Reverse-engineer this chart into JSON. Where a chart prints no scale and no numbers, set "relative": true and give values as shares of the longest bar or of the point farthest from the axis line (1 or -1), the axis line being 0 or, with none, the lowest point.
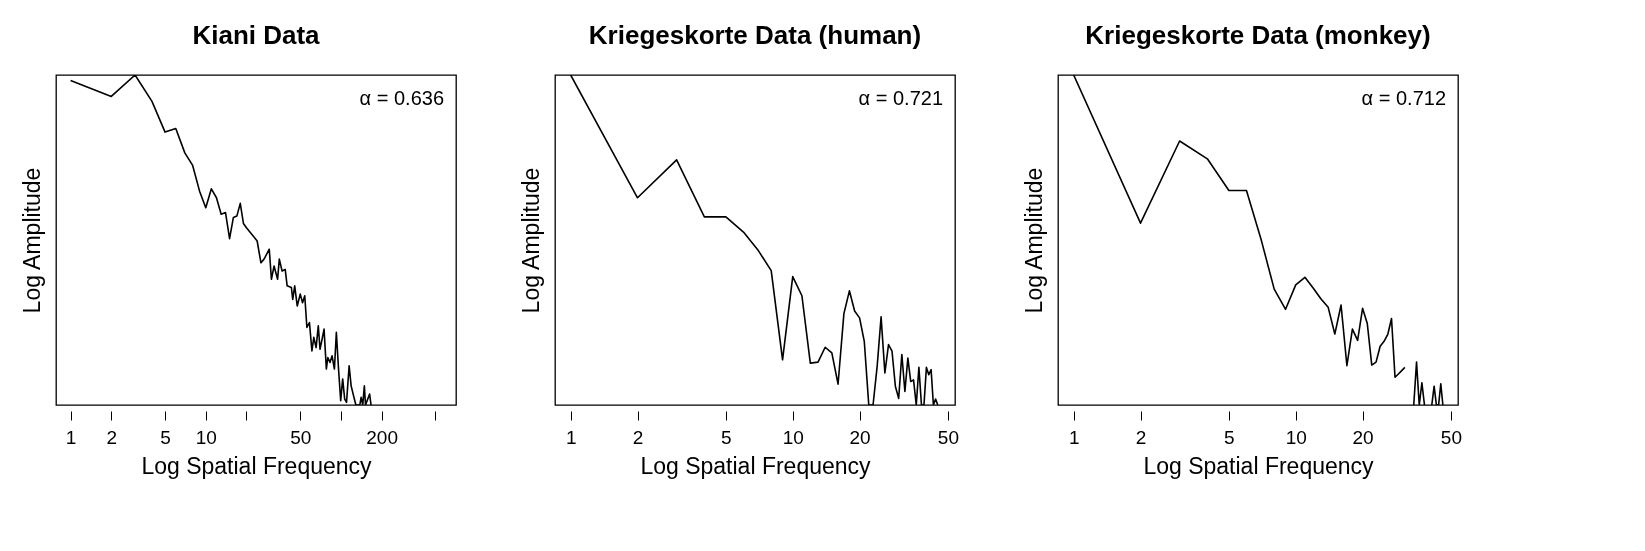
{
  "chart_data": [
    {
      "type": "line",
      "title": "Kiani Data",
      "xlabel": "Log Spatial Frequency",
      "ylabel": "Log Amplitude",
      "relative": true,
      "log": "x",
      "xlim": [
        0.78,
        710
      ],
      "xticks": [
        1,
        2,
        5,
        10,
        {
          "value": 20,
          "label": null
        },
        50,
        {
          "value": 100,
          "label": null
        },
        200,
        {
          "value": 500,
          "label": null
        }
      ],
      "annotations": [
        "α = 0.636"
      ],
      "x": [
        1,
        2,
        3,
        4,
        5,
        6,
        7,
        8,
        9,
        10,
        11,
        12,
        13,
        14,
        15,
        16,
        17,
        18,
        19,
        20,
        24,
        25.6,
        27,
        29.5,
        30.6,
        32,
        34,
        35,
        36.7,
        38.7,
        40,
        43,
        44,
        45.5,
        47.5,
        50,
        52,
        54,
        56,
        58.5,
        61,
        63,
        65.5,
        68,
        70,
        72.6,
        75,
        78,
        80,
        83,
        86,
        89.5,
        92.5,
        96,
        99.6,
        103,
        106.6,
        110,
        115,
        119,
        124,
        129,
        138,
        141,
        145,
        149,
        152,
        163,
        167
      ],
      "series": [
        {
          "color": "#000000",
          "values": [
            0.983,
            0.935,
            1.0,
            0.92,
            0.827,
            0.838,
            0.764,
            0.726,
            0.648,
            0.598,
            0.655,
            0.628,
            0.578,
            0.583,
            0.504,
            0.568,
            0.573,
            0.611,
            0.55,
            0.537,
            0.497,
            0.431,
            0.442,
            0.472,
            0.381,
            0.421,
            0.381,
            0.442,
            0.406,
            0.411,
            0.361,
            0.356,
            0.32,
            0.361,
            0.3,
            0.336,
            0.31,
            0.331,
            0.235,
            0.25,
            0.164,
            0.205,
            0.174,
            0.24,
            0.169,
            0.2,
            0.23,
            0.109,
            0.144,
            0.129,
            0.149,
            0.109,
            0.22,
            0.109,
            0.013,
            0.079,
            0.018,
            0.008,
            0.119,
            0.058,
            0.028,
            0,
            0,
            0.023,
            0,
            0.058,
            0,
            0.033,
            0
          ]
        }
      ]
    },
    {
      "type": "line",
      "title": "Kriegeskorte Data (human)",
      "xlabel": "Log Spatial Frequency",
      "ylabel": "Log Amplitude",
      "relative": true,
      "log": "x",
      "xlim": [
        0.85,
        53.8
      ],
      "xticks": [
        1,
        2,
        5,
        10,
        20,
        50
      ],
      "annotations": [
        "α = 0.721"
      ],
      "x": [
        1,
        2,
        3,
        4,
        5,
        6,
        7,
        8,
        9,
        10,
        11,
        12,
        13,
        14,
        15,
        16,
        17,
        18,
        19,
        20,
        21,
        22,
        23,
        24,
        25,
        26,
        27,
        28,
        29,
        30,
        31,
        32,
        33,
        34,
        35,
        36,
        37,
        38,
        39,
        40,
        41,
        42,
        43,
        44,
        45
      ],
      "series": [
        {
          "color": "#000000",
          "values": [
            1.0,
            0.628,
            0.743,
            0.57,
            0.57,
            0.524,
            0.468,
            0.407,
            0.137,
            0.389,
            0.331,
            0.127,
            0.13,
            0.175,
            0.158,
            0.063,
            0.277,
            0.346,
            0.285,
            0.264,
            0.193,
            0,
            0,
            0.117,
            0.267,
            0.097,
            0.183,
            0.163,
            0.056,
            0.02,
            0.153,
            0.041,
            0.142,
            0.071,
            0.076,
            0,
            0.114,
            0,
            0,
            0.114,
            0.092,
            0.107,
            0,
            0.018,
            0
          ]
        }
      ]
    },
    {
      "type": "line",
      "title": "Kriegeskorte Data (monkey)",
      "xlabel": "Log Spatial Frequency",
      "ylabel": "Log Amplitude",
      "relative": true,
      "log": "x",
      "xlim": [
        0.85,
        53.8
      ],
      "xticks": [
        1,
        2,
        5,
        10,
        20,
        50
      ],
      "annotations": [
        "α = 0.712"
      ],
      "x": [
        1,
        2,
        3,
        4,
        5,
        6,
        7,
        8,
        9,
        10,
        11,
        12,
        13,
        14,
        15,
        16,
        17,
        18,
        19,
        20,
        21,
        22,
        23,
        24,
        25,
        26,
        27,
        28,
        29,
        30,
        31,
        32,
        33,
        34,
        35,
        36,
        37,
        38,
        39,
        40,
        41,
        42,
        43,
        44,
        45,
        46
      ],
      "series": [
        {
          "color": "#000000",
          "values": [
            1.0,
            0.551,
            0.8,
            0.746,
            0.65,
            0.65,
            0.499,
            0.351,
            0.29,
            0.364,
            0.387,
            0.354,
            0.321,
            0.296,
            0.215,
            0.303,
            0.119,
            0.23,
            0.196,
            0.293,
            0.247,
            0.121,
            0.13,
            0.178,
            0.193,
            0.215,
            0.262,
            0.084,
            0.094,
            0.104,
            0.114,
            null,
            null,
            0,
            0.13,
            0,
            0.067,
            0,
            null,
            null,
            0,
            0.057,
            0,
            0,
            0.064,
            0
          ]
        }
      ]
    }
  ]
}
